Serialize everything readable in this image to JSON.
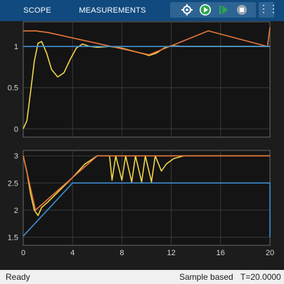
{
  "toolbar": {
    "tabs": [
      {
        "label": "SCOPE"
      },
      {
        "label": "MEASUREMENTS"
      }
    ],
    "buttons": [
      {
        "icon": "settings-icon"
      },
      {
        "icon": "run-icon"
      },
      {
        "icon": "step-forward-icon"
      },
      {
        "icon": "stop-icon"
      },
      {
        "icon": "more-options-icon"
      }
    ],
    "more_label": "⋮⋮"
  },
  "status": {
    "ready": "Ready",
    "mode": "Sample based",
    "time": "T=20.0000"
  },
  "colors": {
    "toolbar_bg": "#114a7e",
    "plot_bg": "#141414",
    "grid": "#3a3a3a",
    "yellow": "#f2d44a",
    "orange": "#e8783b",
    "blue": "#3e8fd6"
  },
  "chart_data": [
    {
      "type": "line",
      "xlim": [
        0,
        20
      ],
      "ylim": [
        -0.1,
        1.3
      ],
      "x_ticks": [],
      "y_ticks": [
        0,
        0.5,
        1
      ],
      "y_tick_labels": [
        "0",
        "0.5",
        "1"
      ],
      "grid": true,
      "series": [
        {
          "color": "yellow",
          "points": [
            [
              0,
              0
            ],
            [
              0.3,
              0.1
            ],
            [
              0.6,
              0.45
            ],
            [
              0.9,
              0.82
            ],
            [
              1.2,
              1.04
            ],
            [
              1.5,
              1.06
            ],
            [
              1.9,
              0.92
            ],
            [
              2.3,
              0.72
            ],
            [
              2.8,
              0.63
            ],
            [
              3.3,
              0.68
            ],
            [
              3.8,
              0.84
            ],
            [
              4.3,
              0.98
            ],
            [
              4.8,
              1.03
            ],
            [
              5.4,
              1.0
            ],
            [
              6.0,
              0.99
            ],
            [
              7.0,
              1.0
            ],
            [
              8.0,
              0.98
            ],
            [
              9.0,
              0.94
            ],
            [
              9.8,
              0.91
            ],
            [
              10.2,
              0.89
            ],
            [
              10.8,
              0.92
            ],
            [
              11.4,
              0.98
            ],
            [
              12.0,
              1.01
            ],
            [
              13.0,
              1.0
            ],
            [
              16,
              1.0
            ],
            [
              20,
              1.0
            ]
          ]
        },
        {
          "color": "orange",
          "points": [
            [
              0,
              1.19
            ],
            [
              1.0,
              1.19
            ],
            [
              2.0,
              1.17
            ],
            [
              10.2,
              0.9
            ],
            [
              15,
              1.19
            ],
            [
              19.8,
              1.0
            ],
            [
              20,
              1.23
            ]
          ]
        },
        {
          "color": "blue",
          "points": [
            [
              0,
              1.0
            ],
            [
              20,
              1.0
            ]
          ]
        }
      ]
    },
    {
      "type": "line",
      "xlim": [
        0,
        20
      ],
      "ylim": [
        1.35,
        3.1
      ],
      "x_ticks": [
        0,
        4,
        8,
        12,
        16,
        20
      ],
      "x_tick_labels": [
        "0",
        "4",
        "8",
        "12",
        "16",
        "20"
      ],
      "y_ticks": [
        1.5,
        2,
        2.5,
        3
      ],
      "y_tick_labels": [
        "1.5",
        "2",
        "2.5",
        "3"
      ],
      "grid": true,
      "series": [
        {
          "color": "yellow",
          "points": [
            [
              0,
              3.0
            ],
            [
              0.3,
              2.7
            ],
            [
              0.6,
              2.3
            ],
            [
              0.9,
              2.0
            ],
            [
              1.2,
              1.9
            ],
            [
              1.5,
              2.05
            ],
            [
              2.0,
              2.15
            ],
            [
              4.0,
              2.6
            ],
            [
              5.0,
              2.85
            ],
            [
              6.0,
              3.0
            ],
            [
              7.0,
              3.0
            ],
            [
              7.2,
              2.55
            ],
            [
              7.5,
              3.0
            ],
            [
              8.0,
              2.55
            ],
            [
              8.3,
              3.0
            ],
            [
              8.8,
              2.52
            ],
            [
              9.1,
              3.0
            ],
            [
              9.6,
              2.52
            ],
            [
              9.9,
              3.0
            ],
            [
              10.4,
              2.52
            ],
            [
              10.7,
              3.0
            ],
            [
              11.2,
              2.72
            ],
            [
              11.6,
              2.85
            ],
            [
              12.2,
              2.95
            ],
            [
              13.0,
              3.0
            ],
            [
              20,
              3.0
            ]
          ]
        },
        {
          "color": "orange",
          "points": [
            [
              0,
              3.0
            ],
            [
              0.4,
              2.6
            ],
            [
              1.0,
              2.0
            ],
            [
              1.5,
              2.1
            ],
            [
              6.0,
              3.0
            ],
            [
              20,
              3.0
            ]
          ]
        },
        {
          "color": "blue",
          "points": [
            [
              0,
              1.52
            ],
            [
              4.0,
              2.5
            ],
            [
              20,
              2.5
            ],
            [
              20,
              1.5
            ]
          ]
        }
      ]
    }
  ]
}
